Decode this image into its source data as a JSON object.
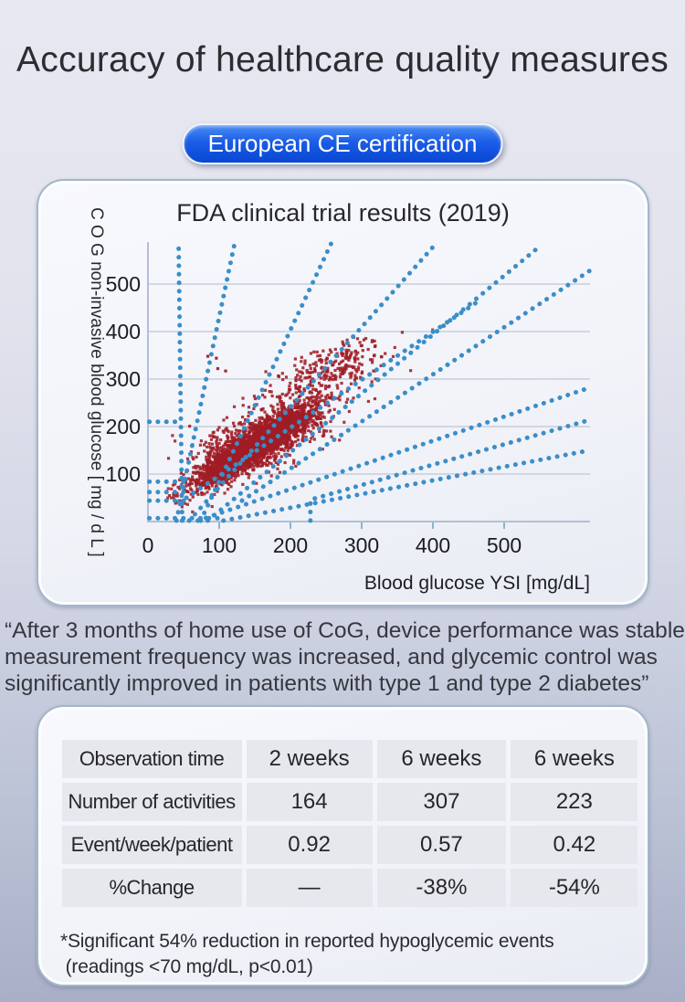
{
  "title": "Accuracy of healthcare quality measures",
  "badge": {
    "label": "European CE certification",
    "color": "#0b51dd",
    "text_color": "#ffffff"
  },
  "quote": {
    "text": "“After 3 months of home use of CoG, device performance was stable\nmeasurement frequency was increased, and glycemic control was\nsignificantly improved in patients with type 1 and type 2 diabetes”"
  },
  "footnote": {
    "text": "*Significant 54% reduction in reported hypoglycemic events\n (readings <70 mg/dL, p<0.01)"
  },
  "theme": {
    "background_top": "#e8e8f2",
    "background_bottom": "#a8afc7",
    "card_background": "#f2f4f9",
    "card_border": "#a2b7c9",
    "table_cell_background": "#e7e8ee",
    "text_color": "#2c2c31"
  },
  "table": {
    "rows": [
      {
        "label": "Observation time",
        "values": [
          "2 weeks",
          "6 weeks",
          "6 weeks"
        ]
      },
      {
        "label": "Number of activities",
        "values": [
          "164",
          "307",
          "223"
        ]
      },
      {
        "label": "Event/week/patient",
        "values": [
          "0.92",
          "0.57",
          "0.42"
        ]
      },
      {
        "label": "%Change",
        "values": [
          "—",
          "-38%",
          "-54%"
        ]
      }
    ]
  },
  "chart_data": {
    "type": "scatter",
    "title": "FDA clinical trial results (2019)",
    "xlabel": "Blood glucose YSI [mg/dL]",
    "ylabel": "C O G non-invasive blood glucose [ mg / d L ]",
    "x_ticks": [
      0,
      100,
      200,
      300,
      400,
      500
    ],
    "y_ticks": [
      100,
      200,
      300,
      400,
      500
    ],
    "xlim": [
      0,
      620
    ],
    "ylim": [
      0,
      595
    ],
    "grid": true,
    "legend": "none",
    "colors": {
      "points": "#a01c25",
      "guides": "#3b8ec8",
      "gridline": "#c7cdd9",
      "axis": "#b2bfd6",
      "tick": "#8fb3cc",
      "label": "#1c1e24"
    },
    "points_note": "Dense cloud of ~3800 paired CGM-vs-YSI readings lying along the identity line between roughly 50 and 380 mg/dL, with a sparser upper tail near (250-340, 300-400); individual values not legible, reproduced statistically.",
    "scatter": {
      "seed": 7,
      "point_size": 3.2,
      "clip": {
        "x": [
          26,
          400
        ],
        "y": [
          16,
          440
        ]
      },
      "clusters": [
        {
          "n": 2700,
          "cx": 148,
          "cy": 158,
          "sigma_major": 52,
          "sigma_minor": 12,
          "angle_deg": 45
        },
        {
          "n": 900,
          "cx": 162,
          "cy": 176,
          "sigma_major": 76,
          "sigma_minor": 27,
          "angle_deg": 45
        },
        {
          "n": 230,
          "cx": 262,
          "cy": 328,
          "sigma_major": 44,
          "sigma_minor": 20,
          "angle_deg": 33
        }
      ],
      "outliers": [
        [
          84,
          348
        ],
        [
          96,
          344
        ],
        [
          109,
          317
        ],
        [
          98,
          322
        ]
      ]
    },
    "guide_lines": [
      {
        "name": "near-vertical",
        "pts": [
          [
            48,
            2
          ],
          [
            43,
            588
          ]
        ]
      },
      {
        "name": "steep-fan",
        "pts": [
          [
            40,
            2
          ],
          [
            122,
            588
          ]
        ]
      },
      {
        "name": "fan-3x",
        "pts": [
          [
            74,
            2
          ],
          [
            258,
            588
          ]
        ]
      },
      {
        "name": "fan-1.7x",
        "pts": [
          [
            58,
            2
          ],
          [
            406,
            588
          ]
        ]
      },
      {
        "name": "fan-1.2x",
        "pts": [
          [
            84,
            2
          ],
          [
            552,
            582
          ]
        ]
      },
      {
        "name": "identity",
        "pts": [
          [
            44,
            40
          ],
          [
            462,
            462
          ]
        ]
      },
      {
        "name": "parallel-lower",
        "pts": [
          [
            132,
            44
          ],
          [
            620,
            528
          ]
        ]
      },
      {
        "name": "lower-fan-a",
        "pts": [
          [
            70,
            2
          ],
          [
            620,
            282
          ]
        ]
      },
      {
        "name": "lower-elbow",
        "pts": [
          [
            228,
            2
          ],
          [
            228,
            46
          ],
          [
            620,
            214
          ]
        ]
      },
      {
        "name": "lower-fan-b",
        "pts": [
          [
            106,
            2
          ],
          [
            620,
            150
          ]
        ]
      },
      {
        "name": "h-seg-210",
        "pts": [
          [
            2,
            210
          ],
          [
            40,
            210
          ]
        ]
      },
      {
        "name": "h-seg-84",
        "pts": [
          [
            2,
            84
          ],
          [
            52,
            84
          ]
        ]
      },
      {
        "name": "h-seg-62",
        "pts": [
          [
            2,
            62
          ],
          [
            52,
            62
          ]
        ]
      },
      {
        "name": "h-seg-44",
        "pts": [
          [
            2,
            44
          ],
          [
            52,
            44
          ]
        ]
      },
      {
        "name": "h-seg-bottom",
        "pts": [
          [
            2,
            7
          ],
          [
            98,
            7
          ]
        ]
      }
    ]
  }
}
